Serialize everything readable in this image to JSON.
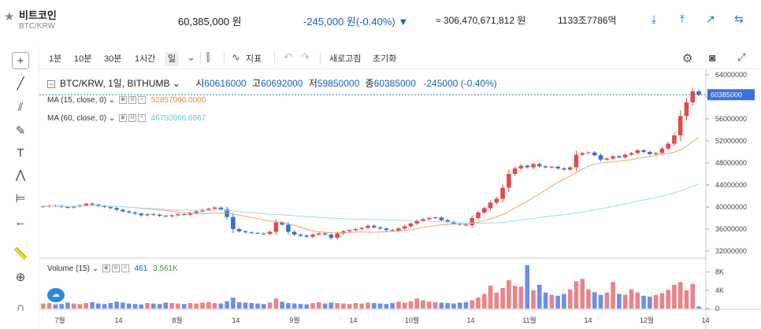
{
  "header": {
    "name": "비트코인",
    "symbol": "BTC/KRW",
    "price": "60,385,000 원",
    "change": "-245,000 원(-0.40%) ▼",
    "volume": "≈ 306,470,671,812 원",
    "market_cap": "1133조7786억",
    "icons": [
      "download-icon",
      "upload-icon",
      "chart-line-icon",
      "swap-icon"
    ]
  },
  "toolbar": {
    "intervals": [
      "1분",
      "10분",
      "30분",
      "1시간",
      "일"
    ],
    "active_interval": "일",
    "indicator_label": "지표",
    "refresh_label": "새로고침",
    "reset_label": "초기화"
  },
  "legend": {
    "title": "BTC/KRW, 1일, BITHUMB",
    "open_label": "시",
    "open": "60616000",
    "high_label": "고",
    "high": "60692000",
    "low_label": "저",
    "low": "59850000",
    "close_label": "종",
    "close": "60385000",
    "change": "-245000 (-0.40%)",
    "ma15_label": "MA (15, close, 0)",
    "ma15_value": "52857000.0000",
    "ma60_label": "MA (60, close, 0)",
    "ma60_value": "46750966.6667",
    "volume_label": "Volume (15)",
    "volume_value1": "461",
    "volume_value2": "3.561K"
  },
  "chart_data": {
    "type": "candlestick",
    "price_axis": [
      "64000000",
      "60000000",
      "56000000",
      "52000000",
      "48000000",
      "44000000",
      "40000000",
      "36000000",
      "32000000"
    ],
    "current_price_tag": "60385000",
    "volume_axis": [
      "8K",
      "4K",
      "0"
    ],
    "x_labels": [
      "7월",
      "14",
      "8월",
      "14",
      "9월",
      "14",
      "10월",
      "14",
      "11월",
      "14",
      "12월",
      "14"
    ],
    "ylim": [
      31000000,
      65000000
    ],
    "closes": [
      40100000,
      40300000,
      40200000,
      40000000,
      39900000,
      40100000,
      40300000,
      40600000,
      40400000,
      40200000,
      40000000,
      39800000,
      39500000,
      39200000,
      39000000,
      38800000,
      38500000,
      38700000,
      38600000,
      38400000,
      38300000,
      38500000,
      38700000,
      38600000,
      38900000,
      39200000,
      39500000,
      39700000,
      39900000,
      39600000,
      38200000,
      36000000,
      35600000,
      35400000,
      35300000,
      35200000,
      35100000,
      35500000,
      37200000,
      36800000,
      35500000,
      35000000,
      34800000,
      34600000,
      35000000,
      35200000,
      35000000,
      34400000,
      35200000,
      35600000,
      35800000,
      36000000,
      36200000,
      36600000,
      36300000,
      36100000,
      35800000,
      35700000,
      36100000,
      36500000,
      37000000,
      37500000,
      37800000,
      38000000,
      38100000,
      37600000,
      37300000,
      37000000,
      36800000,
      36700000,
      38000000,
      39000000,
      39800000,
      40800000,
      41500000,
      43500000,
      46000000,
      47000000,
      47500000,
      47200000,
      47800000,
      47400000,
      47200000,
      47300000,
      47000000,
      46800000,
      47200000,
      49500000,
      49800000,
      49900000,
      49400000,
      48600000,
      48800000,
      49200000,
      49000000,
      49500000,
      49800000,
      50300000,
      50000000,
      49600000,
      49800000,
      50600000,
      51500000,
      53000000,
      56500000,
      59000000,
      61000000,
      60385000
    ],
    "volumes": [
      1100,
      1200,
      900,
      1000,
      1300,
      1100,
      1000,
      1200,
      1400,
      1100,
      1000,
      1200,
      1500,
      1300,
      1100,
      1000,
      900,
      1200,
      1100,
      1000,
      1300,
      1200,
      1100,
      1000,
      1200,
      1100,
      1300,
      1400,
      1200,
      1100,
      1600,
      2400,
      1400,
      1300,
      1200,
      1100,
      1000,
      1300,
      2200,
      1500,
      1200,
      1100,
      1000,
      900,
      1200,
      1400,
      1100,
      1300,
      1200,
      1100,
      1000,
      1200,
      1100,
      1300,
      1200,
      1100,
      1000,
      1200,
      1500,
      1300,
      1600,
      2200,
      1800,
      1500,
      1400,
      1300,
      1200,
      1100,
      1300,
      1400,
      1800,
      2400,
      3200,
      5000,
      3500,
      4500,
      6200,
      5000,
      4800,
      9500,
      4000,
      5200,
      3500,
      3000,
      2800,
      3200,
      4200,
      6000,
      6500,
      4200,
      3600,
      3000,
      3500,
      5800,
      3200,
      3000,
      4200,
      3500,
      2800,
      2600,
      3000,
      3400,
      4100,
      5200,
      5800,
      4000,
      5400,
      461
    ]
  }
}
